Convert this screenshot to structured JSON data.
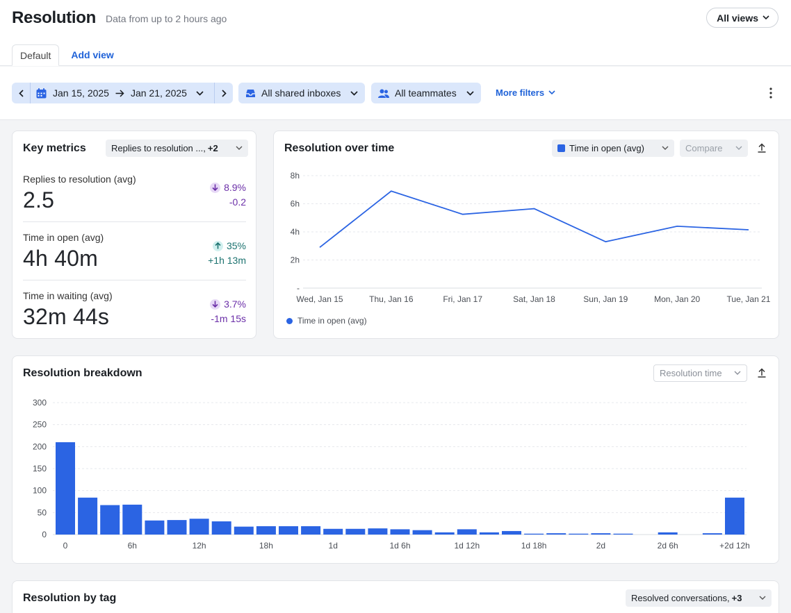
{
  "header": {
    "title": "Resolution",
    "subtitle": "Data from up to 2 hours ago",
    "all_views": "All views",
    "tabs": [
      {
        "label": "Default",
        "active": true
      },
      {
        "label": "Add view",
        "active": false
      }
    ]
  },
  "filters": {
    "date_start": "Jan 15, 2025",
    "date_end": "Jan 21, 2025",
    "inboxes": "All shared inboxes",
    "teammates": "All teammates",
    "more_filters": "More filters"
  },
  "key_metrics": {
    "title": "Key metrics",
    "selector_label": "Replies to resolution ...,",
    "selector_extra": "+2",
    "metrics": [
      {
        "label": "Replies to resolution (avg)",
        "value": "2.5",
        "pct": "8.9%",
        "abs": "-0.2",
        "direction": "down"
      },
      {
        "label": "Time in open (avg)",
        "value": "4h 40m",
        "pct": "35%",
        "abs": "+1h 13m",
        "direction": "up"
      },
      {
        "label": "Time in waiting (avg)",
        "value": "32m 44s",
        "pct": "3.7%",
        "abs": "-1m 15s",
        "direction": "down"
      }
    ]
  },
  "resolution_over_time": {
    "title": "Resolution over time",
    "series_select": "Time in open (avg)",
    "compare": "Compare",
    "legend": "Time in open (avg)"
  },
  "resolution_breakdown": {
    "title": "Resolution breakdown",
    "select": "Resolution time"
  },
  "resolution_by_tag": {
    "title": "Resolution by tag",
    "select_label": "Resolved conversations,",
    "select_extra": "+3"
  },
  "colors": {
    "accent": "#2b64e3",
    "link": "#1f62d8",
    "filter_bg": "#dbe7fb"
  },
  "chart_data": [
    {
      "type": "line",
      "title": "Resolution over time",
      "categories": [
        "Wed, Jan 15",
        "Thu, Jan 16",
        "Fri, Jan 17",
        "Sat, Jan 18",
        "Sun, Jan 19",
        "Mon, Jan 20",
        "Tue, Jan 21"
      ],
      "series": [
        {
          "name": "Time in open (avg)",
          "values": [
            2.9,
            6.9,
            5.25,
            5.65,
            3.3,
            4.4,
            4.15
          ]
        }
      ],
      "y_ticks": [
        "-",
        "2h",
        "4h",
        "6h",
        "8h"
      ],
      "ylim": [
        0,
        8
      ],
      "grid": true,
      "legend": "bottom-left"
    },
    {
      "type": "bar",
      "title": "Resolution breakdown",
      "values": [
        210,
        84,
        67,
        68,
        32,
        33,
        36,
        30,
        18,
        19,
        19,
        19,
        13,
        13,
        14,
        12,
        10,
        5,
        12,
        5,
        8,
        2,
        3,
        2,
        3,
        2,
        0,
        5,
        0,
        3,
        84
      ],
      "x_ticks": [
        {
          "label": "0",
          "index": 0
        },
        {
          "label": "6h",
          "index": 3
        },
        {
          "label": "12h",
          "index": 6
        },
        {
          "label": "18h",
          "index": 9
        },
        {
          "label": "1d",
          "index": 12
        },
        {
          "label": "1d 6h",
          "index": 15
        },
        {
          "label": "1d 12h",
          "index": 18
        },
        {
          "label": "1d 18h",
          "index": 21
        },
        {
          "label": "2d",
          "index": 24
        },
        {
          "label": "2d 6h",
          "index": 27
        },
        {
          "label": "+2d 12h",
          "index": 30
        }
      ],
      "y_ticks": [
        "0",
        "50",
        "100",
        "150",
        "200",
        "250",
        "300"
      ],
      "ylim": [
        0,
        300
      ],
      "grid": true
    }
  ]
}
